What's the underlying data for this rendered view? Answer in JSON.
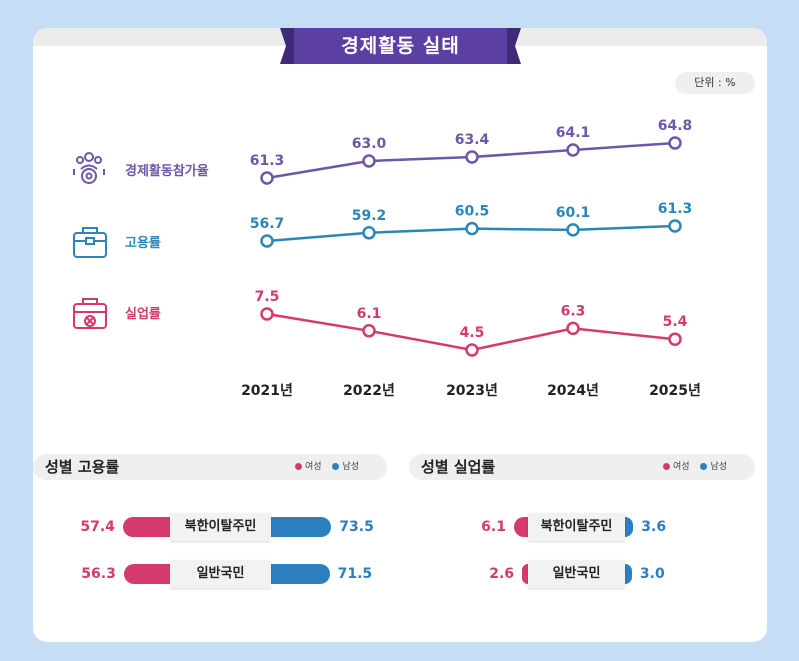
{
  "title": "경제활동 실태",
  "unit": "단위 : %",
  "colors": {
    "title_bg": "#5b3fa3",
    "participation": "#6e56a8",
    "employment": "#2b86b8",
    "unemployment": "#d43b6c",
    "female": "#d43b6c",
    "male": "#2b7fc0"
  },
  "chart_data": [
    {
      "type": "line",
      "categories": [
        "2021년",
        "2022년",
        "2023년",
        "2024년",
        "2025년"
      ],
      "series": [
        {
          "name": "경제활동참가율",
          "icon": "people-gear-icon",
          "values": [
            61.3,
            63.0,
            63.4,
            64.1,
            64.8
          ],
          "labels": [
            "61.3",
            "63.0",
            "63.4",
            "64.1",
            "64.8"
          ]
        },
        {
          "name": "고용률",
          "icon": "briefcase-icon",
          "values": [
            56.7,
            59.2,
            60.5,
            60.1,
            61.3
          ],
          "labels": [
            "56.7",
            "59.2",
            "60.5",
            "60.1",
            "61.3"
          ]
        },
        {
          "name": "실업률",
          "icon": "briefcase-x-icon",
          "values": [
            7.5,
            6.1,
            4.5,
            6.3,
            5.4
          ],
          "labels": [
            "7.5",
            "6.1",
            "4.5",
            "6.3",
            "5.4"
          ]
        }
      ]
    },
    {
      "type": "bar",
      "title": "성별 고용률",
      "legend": [
        "여성",
        "남성"
      ],
      "categories": [
        "북한이탈주민",
        "일반국민"
      ],
      "series": [
        {
          "name": "여성",
          "values": [
            57.4,
            56.3
          ],
          "labels": [
            "57.4",
            "56.3"
          ]
        },
        {
          "name": "남성",
          "values": [
            73.5,
            71.5
          ],
          "labels": [
            "73.5",
            "71.5"
          ]
        }
      ]
    },
    {
      "type": "bar",
      "title": "성별 실업률",
      "legend": [
        "여성",
        "남성"
      ],
      "categories": [
        "북한이탈주민",
        "일반국민"
      ],
      "series": [
        {
          "name": "여성",
          "values": [
            6.1,
            2.6
          ],
          "labels": [
            "6.1",
            "2.6"
          ]
        },
        {
          "name": "남성",
          "values": [
            3.6,
            3.0
          ],
          "labels": [
            "3.6",
            "3.0"
          ]
        }
      ]
    }
  ]
}
